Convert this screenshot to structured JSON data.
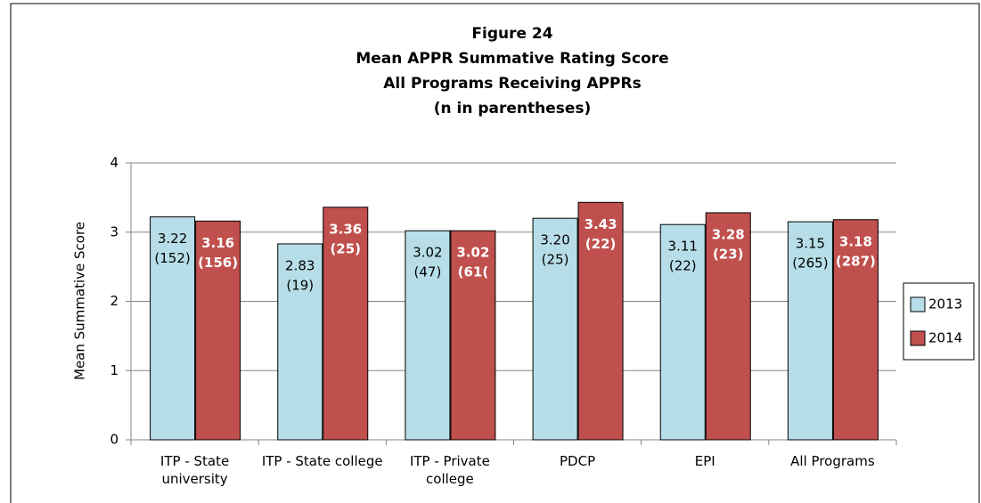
{
  "chart_data": {
    "type": "bar",
    "title": "Figure 24",
    "subtitle": [
      "Mean APPR Summative Rating Score",
      "All Programs Receiving APPRs",
      "(n in parentheses)"
    ],
    "y_label": "Mean Summative Score",
    "categories": [
      "ITP - State university",
      "ITP - State college",
      "ITP - Private college",
      "PDCP",
      "EPI",
      "All Programs"
    ],
    "series": [
      {
        "name": "2013",
        "color": "#b7dee8",
        "values": [
          3.22,
          2.83,
          3.02,
          3.2,
          3.11,
          3.15
        ],
        "value_labels": [
          "3.22",
          "2.83",
          "3.02",
          "3.20",
          "3.11",
          "3.15"
        ],
        "counts": [
          "(152)",
          "(19)",
          "(47)",
          "(25)",
          "(22)",
          "(265)"
        ]
      },
      {
        "name": "2014",
        "color": "#c0504d",
        "values": [
          3.16,
          3.36,
          3.02,
          3.43,
          3.28,
          3.18
        ],
        "value_labels": [
          "3.16",
          "3.36",
          "3.02",
          "3.43",
          "3.28",
          "3.18"
        ],
        "counts": [
          "(156)",
          "(25)",
          "(61(",
          "(22)",
          "(23)",
          "(287)"
        ]
      }
    ],
    "ylim": [
      0,
      4
    ],
    "yticks": [
      0,
      1,
      2,
      3,
      4
    ],
    "grid": true,
    "legend": "right"
  }
}
